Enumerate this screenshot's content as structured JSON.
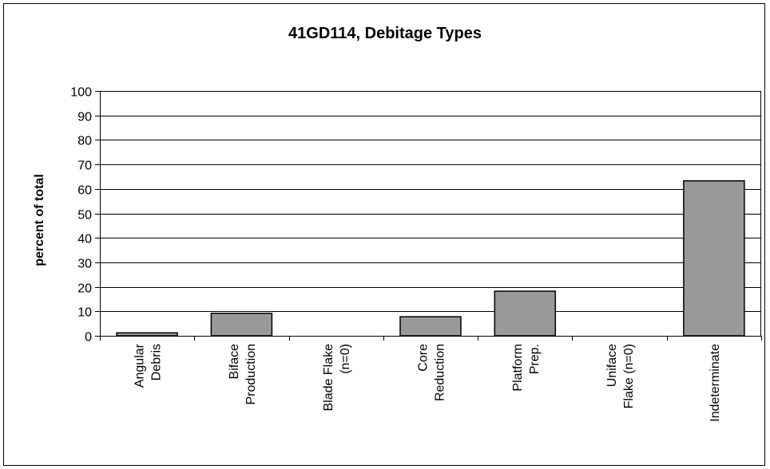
{
  "chart_data": {
    "type": "bar",
    "title": "41GD114, Debitage Types",
    "xlabel": "",
    "ylabel": "percent of total",
    "ylim": [
      0,
      100
    ],
    "yticks": [
      0,
      10,
      20,
      30,
      40,
      50,
      60,
      70,
      80,
      90,
      100
    ],
    "grid": true,
    "legend": "none",
    "categories": [
      [
        "Angular",
        "Debris"
      ],
      [
        "Biface",
        "Production"
      ],
      [
        "Blade Flake",
        "(n=0)"
      ],
      [
        "Core",
        "Reduction"
      ],
      [
        "Platform",
        "Prep."
      ],
      [
        "Uniface",
        "Flake (n=0)"
      ],
      [
        "Indeterminate"
      ]
    ],
    "values": [
      1.2,
      9.2,
      0,
      7.8,
      18.2,
      0,
      63.3
    ],
    "bar_color": "#999999"
  }
}
